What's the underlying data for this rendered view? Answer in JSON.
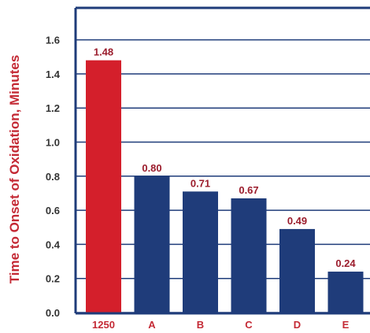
{
  "chart_data": {
    "type": "bar",
    "title": "",
    "xlabel": "",
    "ylabel": "Time to Onset of Oxidation, Minutes",
    "categories": [
      "1250",
      "A",
      "B",
      "C",
      "D",
      "E"
    ],
    "values": [
      1.48,
      0.8,
      0.71,
      0.67,
      0.49,
      0.24
    ],
    "value_labels": [
      "1.48",
      "0.80",
      "0.71",
      "0.67",
      "0.49",
      "0.24"
    ],
    "ylim": [
      0,
      1.7
    ],
    "yticks": [
      "0.0",
      "0.2",
      "0.4",
      "0.6",
      "0.8",
      "1.0",
      "1.2",
      "1.4",
      "1.6"
    ],
    "grid": true,
    "legend": "none",
    "colors": {
      "highlight_bar": "#d41f2b",
      "bar": "#1f3c7a",
      "ylabel_text": "#c42a35",
      "category_text": "#c42a35",
      "data_label_text": "#9b1c2c",
      "gridline": "#1f3c7a",
      "frame": "#1f3c7a"
    },
    "highlight_index": 0
  }
}
